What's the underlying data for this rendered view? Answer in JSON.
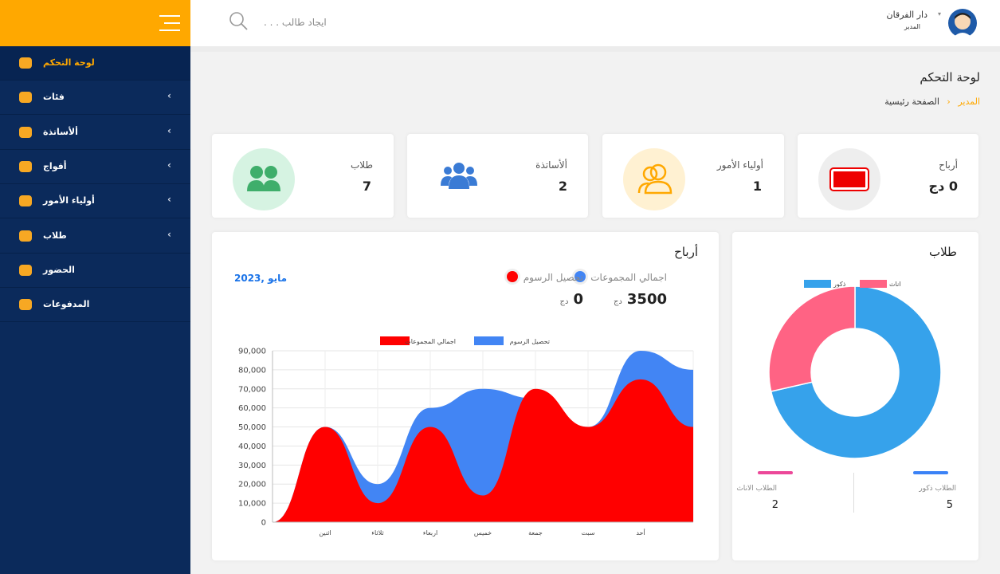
{
  "sidebar": {
    "items": [
      "لوحة التحكم",
      "فئات",
      "ألأساتذة",
      "أفواج",
      "أولياء الأمور",
      "طلاب",
      "الحضور",
      "المدفوعات"
    ]
  },
  "header": {
    "search_placeholder": "ايجاد طالب . . .",
    "user_name": "دار الفرقان",
    "user_role": "المدير"
  },
  "page": {
    "title": "لوحة التحكم",
    "breadcrumb": [
      "المدير",
      "الصفحة رئيسية"
    ]
  },
  "stats": [
    {
      "label": "أرباح",
      "value": 0,
      "unit": "دج"
    },
    {
      "label": "أولياء الأمور",
      "value": 1
    },
    {
      "label": "ألأساتذة",
      "value": 2
    },
    {
      "label": "طلاب",
      "value": 7
    }
  ],
  "profits": {
    "title": "أرباح",
    "date": "مايو ,2023",
    "summary": [
      {
        "label": "اجمالي المجموعات",
        "value": 3500,
        "unit": "دج",
        "color": "#4285f4"
      },
      {
        "label": "تحصيل الرسوم",
        "value": 0,
        "unit": "دج",
        "color": "#ff0000"
      }
    ]
  },
  "students": {
    "title": "طلاب",
    "summary": [
      {
        "label": "الطلاب ذكور",
        "value": 5,
        "color": "#3b82f6"
      },
      {
        "label": "الطلاب الاناث",
        "value": 2,
        "color": "#ec4899"
      }
    ]
  },
  "chart_data": [
    {
      "type": "area",
      "categories": [
        null,
        "اثنين",
        "ثلاثاء",
        "اربعاء",
        "خميس",
        "جمعة",
        "سبت",
        "أحد",
        null
      ],
      "series": [
        {
          "name": "تحصيل الرسوم",
          "color": "#4285f4",
          "values": [
            0,
            50000,
            20000,
            60000,
            70000,
            65000,
            50000,
            90000,
            80000
          ]
        },
        {
          "name": "اجمالي المجموعات",
          "color": "#ff0000",
          "values": [
            0,
            50000,
            10000,
            50000,
            14000,
            70000,
            50000,
            75000,
            50000
          ]
        }
      ],
      "ylim": [
        0,
        90000
      ],
      "yticks": [
        0,
        {
          "value": 10000,
          "label": "10,000"
        },
        {
          "value": 20000,
          "label": "20,000"
        },
        {
          "value": 30000,
          "label": "30,000"
        },
        {
          "value": 40000,
          "label": "40,000"
        },
        {
          "value": 50000,
          "label": "50,000"
        },
        {
          "value": 60000,
          "label": "60,000"
        },
        {
          "value": 70000,
          "label": "70,000"
        },
        {
          "value": 80000,
          "label": "80,000"
        },
        {
          "value": 90000,
          "label": "90,000"
        }
      ],
      "grid": true
    },
    {
      "type": "doughnut",
      "categories": [
        "ذكور",
        "اناث"
      ],
      "values": [
        5,
        2
      ],
      "colors": [
        "#36a2eb",
        "#ff6384"
      ]
    }
  ]
}
